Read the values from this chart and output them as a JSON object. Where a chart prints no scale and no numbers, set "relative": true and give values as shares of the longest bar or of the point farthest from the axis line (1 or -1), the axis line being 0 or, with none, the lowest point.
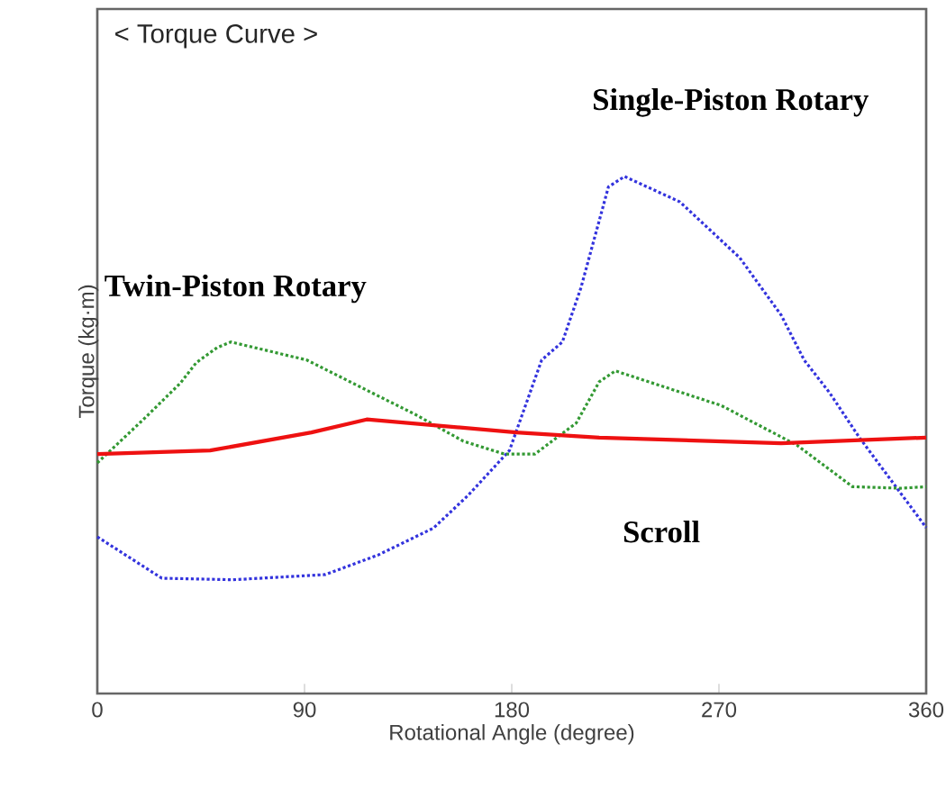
{
  "chart_data": {
    "type": "line",
    "title": "< Torque Curve >",
    "xlabel": "Rotational Angle (degree)",
    "ylabel": "Torque (kg·m)",
    "relative": true,
    "legend": false,
    "xlim": [
      0,
      360
    ],
    "xticks": [
      0,
      90,
      180,
      270,
      360
    ],
    "series": [
      {
        "name": "Single-Piston Rotary",
        "color": "#3333dd",
        "line_style": "dotted",
        "x": [
          0,
          28,
          59,
          99,
          122,
          146,
          161,
          179,
          193,
          202,
          210,
          222,
          229,
          253,
          279,
          297,
          307,
          318,
          331,
          360
        ],
        "values": [
          0.303,
          0.223,
          0.22,
          0.23,
          0.268,
          0.32,
          0.383,
          0.47,
          0.645,
          0.68,
          0.784,
          0.98,
          1.0,
          0.951,
          0.843,
          0.732,
          0.645,
          0.582,
          0.495,
          0.321
        ]
      },
      {
        "name": "Twin-Piston Rotary",
        "color": "#339933",
        "line_style": "dotted",
        "x": [
          0,
          20,
          36,
          43,
          52,
          58,
          91,
          120,
          138,
          159,
          177,
          190,
          208,
          218,
          225,
          271,
          304,
          328,
          349,
          360
        ],
        "values": [
          0.446,
          0.53,
          0.6,
          0.64,
          0.669,
          0.68,
          0.645,
          0.58,
          0.54,
          0.488,
          0.463,
          0.463,
          0.523,
          0.603,
          0.624,
          0.557,
          0.48,
          0.4,
          0.397,
          0.4
        ]
      },
      {
        "name": "Scroll",
        "color": "#ee1111",
        "line_style": "solid",
        "x": [
          0,
          49,
          93,
          117,
          182,
          218,
          297,
          360
        ],
        "values": [
          0.463,
          0.47,
          0.505,
          0.53,
          0.505,
          0.495,
          0.484,
          0.495
        ]
      }
    ]
  }
}
